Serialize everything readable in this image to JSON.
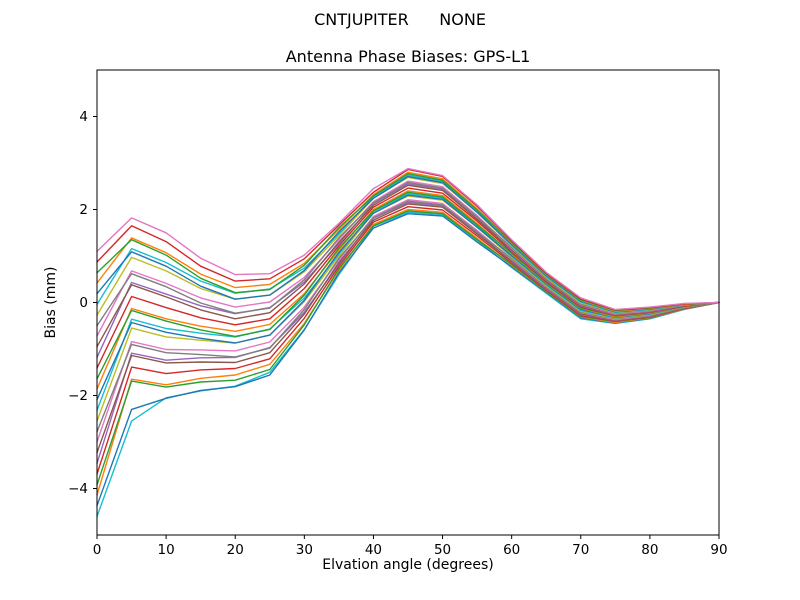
{
  "chart_data": {
    "type": "line",
    "suptitle": "CNTJUPITER      NONE",
    "title": "Antenna Phase Biases: GPS-L1",
    "xlabel": "Elvation angle (degrees)",
    "ylabel": "Bias (mm)",
    "xlim": [
      0,
      90
    ],
    "ylim": [
      -5,
      5
    ],
    "xticks": [
      0,
      10,
      20,
      30,
      40,
      50,
      60,
      70,
      80,
      90
    ],
    "yticks": [
      -4,
      -2,
      0,
      2,
      4
    ],
    "grid": false,
    "legend": false,
    "x": [
      0,
      5,
      10,
      15,
      20,
      25,
      30,
      35,
      40,
      45,
      50,
      55,
      60,
      65,
      70,
      75,
      80,
      85,
      90
    ],
    "series": [
      {
        "color": "#17becf",
        "values": [
          -4.6,
          -2.55,
          -2.05,
          -1.9,
          -1.8,
          -1.5,
          -0.58,
          0.6,
          1.64,
          1.94,
          1.89,
          1.34,
          0.75,
          0.2,
          -0.35,
          -0.45,
          -0.35,
          -0.15,
          0
        ]
      },
      {
        "color": "#1f77b4",
        "values": [
          -4.37,
          -2.3,
          -2.06,
          -1.89,
          -1.81,
          -1.56,
          -0.59,
          0.64,
          1.6,
          1.91,
          1.86,
          1.3,
          0.77,
          0.22,
          -0.33,
          -0.44,
          -0.34,
          -0.14,
          0
        ]
      },
      {
        "color": "#ff7f0e",
        "values": [
          -4.14,
          -1.65,
          -1.77,
          -1.63,
          -1.56,
          -1.33,
          -0.45,
          0.69,
          1.68,
          2.0,
          1.94,
          1.38,
          0.8,
          0.24,
          -0.31,
          -0.43,
          -0.33,
          -0.14,
          0
        ]
      },
      {
        "color": "#2ca02c",
        "values": [
          -3.92,
          -1.69,
          -1.82,
          -1.71,
          -1.67,
          -1.44,
          -0.48,
          0.73,
          1.65,
          1.97,
          1.91,
          1.35,
          0.82,
          0.25,
          -0.3,
          -0.41,
          -0.32,
          -0.13,
          0
        ]
      },
      {
        "color": "#d62728",
        "values": [
          -3.69,
          -1.39,
          -1.53,
          -1.45,
          -1.42,
          -1.21,
          -0.34,
          0.78,
          1.73,
          2.06,
          1.99,
          1.43,
          0.85,
          0.27,
          -0.28,
          -0.4,
          -0.31,
          -0.13,
          0
        ]
      },
      {
        "color": "#9467bd",
        "values": [
          -3.46,
          -1.09,
          -1.24,
          -1.19,
          -1.18,
          -0.97,
          -0.21,
          0.82,
          1.81,
          2.15,
          2.08,
          1.51,
          0.87,
          0.29,
          -0.26,
          -0.39,
          -0.3,
          -0.12,
          0
        ]
      },
      {
        "color": "#8c564b",
        "values": [
          -3.23,
          -1.14,
          -1.3,
          -1.28,
          -1.29,
          -1.08,
          -0.25,
          0.86,
          1.77,
          2.12,
          2.05,
          1.47,
          0.89,
          0.31,
          -0.24,
          -0.38,
          -0.29,
          -0.12,
          0
        ]
      },
      {
        "color": "#e377c2",
        "values": [
          -3.0,
          -0.84,
          -1.01,
          -1.02,
          -1.04,
          -0.85,
          -0.1,
          0.91,
          1.85,
          2.21,
          2.13,
          1.55,
          0.92,
          0.33,
          -0.22,
          -0.37,
          -0.28,
          -0.11,
          0
        ]
      },
      {
        "color": "#7f7f7f",
        "values": [
          -2.78,
          -0.9,
          -1.08,
          -1.12,
          -1.17,
          -0.98,
          -0.15,
          0.95,
          1.82,
          2.18,
          2.1,
          1.52,
          0.94,
          0.34,
          -0.21,
          -0.35,
          -0.27,
          -0.11,
          0
        ]
      },
      {
        "color": "#bcbd22",
        "values": [
          -2.55,
          -0.55,
          -0.74,
          -0.81,
          -0.87,
          -0.7,
          0.02,
          1.0,
          1.92,
          2.29,
          2.2,
          1.62,
          0.97,
          0.36,
          -0.19,
          -0.34,
          -0.26,
          -0.1,
          0
        ]
      },
      {
        "color": "#17becf",
        "values": [
          -2.32,
          -0.36,
          -0.56,
          -0.66,
          -0.74,
          -0.57,
          0.1,
          1.04,
          1.96,
          2.34,
          2.25,
          1.66,
          0.99,
          0.38,
          -0.17,
          -0.33,
          -0.25,
          -0.1,
          0
        ]
      },
      {
        "color": "#1f77b4",
        "values": [
          -2.09,
          -0.43,
          -0.64,
          -0.77,
          -0.87,
          -0.7,
          0.05,
          1.08,
          1.92,
          2.31,
          2.22,
          1.62,
          1.01,
          0.4,
          -0.15,
          -0.32,
          -0.24,
          -0.09,
          0
        ]
      },
      {
        "color": "#ff7f0e",
        "values": [
          -1.86,
          -0.13,
          -0.35,
          -0.51,
          -0.62,
          -0.47,
          0.19,
          1.13,
          2.0,
          2.4,
          2.3,
          1.7,
          1.04,
          0.42,
          -0.13,
          -0.31,
          -0.23,
          -0.09,
          0
        ]
      },
      {
        "color": "#2ca02c",
        "values": [
          -1.64,
          -0.17,
          -0.4,
          -0.59,
          -0.73,
          -0.58,
          0.16,
          1.17,
          1.97,
          2.37,
          2.27,
          1.67,
          1.06,
          0.43,
          -0.12,
          -0.29,
          -0.22,
          -0.08,
          0
        ]
      },
      {
        "color": "#d62728",
        "values": [
          -1.41,
          0.13,
          -0.11,
          -0.33,
          -0.48,
          -0.35,
          0.3,
          1.22,
          2.05,
          2.46,
          2.35,
          1.75,
          1.09,
          0.45,
          -0.1,
          -0.28,
          -0.21,
          -0.08,
          0
        ]
      },
      {
        "color": "#9467bd",
        "values": [
          -1.18,
          0.43,
          0.18,
          -0.07,
          -0.24,
          -0.11,
          0.44,
          1.26,
          2.13,
          2.55,
          2.44,
          1.83,
          1.11,
          0.47,
          -0.08,
          -0.27,
          -0.2,
          -0.07,
          0
        ]
      },
      {
        "color": "#8c564b",
        "values": [
          -0.95,
          0.38,
          0.12,
          -0.16,
          -0.35,
          -0.22,
          0.4,
          1.3,
          2.09,
          2.52,
          2.41,
          1.79,
          1.13,
          0.49,
          -0.06,
          -0.26,
          -0.19,
          -0.07,
          0
        ]
      },
      {
        "color": "#e377c2",
        "values": [
          -0.72,
          0.68,
          0.41,
          0.1,
          -0.1,
          0.01,
          0.54,
          1.35,
          2.17,
          2.61,
          2.49,
          1.87,
          1.16,
          0.51,
          -0.04,
          -0.25,
          -0.18,
          -0.06,
          0
        ]
      },
      {
        "color": "#7f7f7f",
        "values": [
          -0.5,
          0.62,
          0.34,
          -0.01,
          -0.23,
          -0.12,
          0.49,
          1.39,
          2.14,
          2.58,
          2.46,
          1.84,
          1.18,
          0.52,
          -0.03,
          -0.23,
          -0.17,
          -0.06,
          0
        ]
      },
      {
        "color": "#bcbd22",
        "values": [
          -0.27,
          0.97,
          0.68,
          0.3,
          0.07,
          0.16,
          0.66,
          1.44,
          2.24,
          2.69,
          2.56,
          1.94,
          1.21,
          0.54,
          -0.01,
          -0.22,
          -0.16,
          -0.05,
          0
        ]
      },
      {
        "color": "#17becf",
        "values": [
          -0.04,
          1.16,
          0.86,
          0.46,
          0.2,
          0.29,
          0.74,
          1.48,
          2.28,
          2.74,
          2.61,
          1.98,
          1.23,
          0.56,
          0.01,
          -0.21,
          -0.15,
          -0.05,
          0
        ]
      },
      {
        "color": "#1f77b4",
        "values": [
          0.19,
          1.09,
          0.78,
          0.35,
          0.07,
          0.16,
          0.69,
          1.52,
          2.24,
          2.71,
          2.58,
          1.94,
          1.25,
          0.58,
          0.03,
          -0.2,
          -0.14,
          -0.04,
          0
        ]
      },
      {
        "color": "#ff7f0e",
        "values": [
          0.42,
          1.39,
          1.07,
          0.61,
          0.32,
          0.39,
          0.84,
          1.57,
          2.32,
          2.8,
          2.66,
          2.02,
          1.28,
          0.6,
          0.05,
          -0.19,
          -0.13,
          -0.04,
          0
        ]
      },
      {
        "color": "#2ca02c",
        "values": [
          0.64,
          1.35,
          1.02,
          0.52,
          0.21,
          0.28,
          0.8,
          1.61,
          2.29,
          2.77,
          2.63,
          1.99,
          1.3,
          0.61,
          0.06,
          -0.17,
          -0.12,
          -0.03,
          0
        ]
      },
      {
        "color": "#d62728",
        "values": [
          0.87,
          1.65,
          1.31,
          0.78,
          0.46,
          0.51,
          0.94,
          1.66,
          2.37,
          2.86,
          2.71,
          2.07,
          1.33,
          0.63,
          0.08,
          -0.16,
          -0.11,
          -0.03,
          0
        ]
      },
      {
        "color": "#e377c2",
        "values": [
          1.1,
          1.82,
          1.5,
          0.95,
          0.6,
          0.62,
          1.02,
          1.7,
          2.45,
          2.88,
          2.73,
          2.1,
          1.35,
          0.65,
          0.1,
          -0.15,
          -0.1,
          -0.02,
          0
        ]
      }
    ]
  }
}
